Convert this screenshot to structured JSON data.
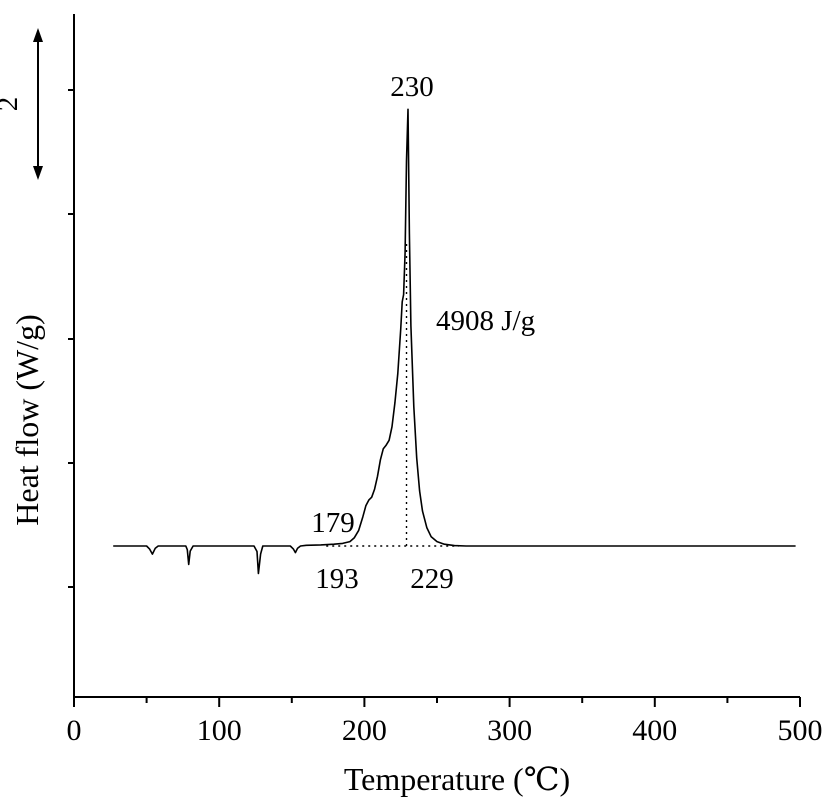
{
  "chart_data": {
    "type": "line",
    "title": "",
    "xlabel": "Temperature (℃)",
    "ylabel": "Heat flow (W/g)",
    "xlim": [
      0,
      500
    ],
    "x_ticks": [
      0,
      100,
      200,
      300,
      400,
      500
    ],
    "x_minor_step": 50,
    "y_ticks_shown": false,
    "grid": false,
    "legend": "none",
    "scale_bar": {
      "label": "2",
      "value": 2,
      "unit": "W/g"
    },
    "baseline_y": 0,
    "series": [
      {
        "points": [
          [
            27,
            0
          ],
          [
            50,
            0
          ],
          [
            52,
            -0.08
          ],
          [
            54,
            -0.22
          ],
          [
            56,
            -0.06
          ],
          [
            58,
            0
          ],
          [
            77,
            0
          ],
          [
            78,
            -0.1
          ],
          [
            79,
            -0.5
          ],
          [
            80,
            -0.14
          ],
          [
            82,
            0
          ],
          [
            124,
            0
          ],
          [
            126,
            -0.15
          ],
          [
            127,
            -0.75
          ],
          [
            128.5,
            -0.22
          ],
          [
            130,
            0
          ],
          [
            149,
            0
          ],
          [
            151,
            -0.08
          ],
          [
            152.5,
            -0.18
          ],
          [
            154,
            -0.06
          ],
          [
            156,
            0
          ],
          [
            160,
            0.02
          ],
          [
            170,
            0.03
          ],
          [
            179,
            0.05
          ],
          [
            185,
            0.07
          ],
          [
            190,
            0.12
          ],
          [
            193,
            0.22
          ],
          [
            196,
            0.42
          ],
          [
            199,
            0.8
          ],
          [
            201,
            1.1
          ],
          [
            203,
            1.25
          ],
          [
            205,
            1.33
          ],
          [
            207,
            1.55
          ],
          [
            209,
            1.9
          ],
          [
            211,
            2.35
          ],
          [
            213,
            2.65
          ],
          [
            215,
            2.75
          ],
          [
            217,
            2.88
          ],
          [
            219,
            3.25
          ],
          [
            221,
            3.9
          ],
          [
            223,
            4.7
          ],
          [
            225,
            5.9
          ],
          [
            226,
            6.65
          ],
          [
            227,
            6.85
          ],
          [
            228,
            8.0
          ],
          [
            229,
            10.5
          ],
          [
            230,
            11.9
          ],
          [
            231,
            8.5
          ],
          [
            232,
            6.0
          ],
          [
            234,
            3.8
          ],
          [
            236,
            2.4
          ],
          [
            238,
            1.5
          ],
          [
            240,
            0.95
          ],
          [
            243,
            0.5
          ],
          [
            246,
            0.25
          ],
          [
            250,
            0.12
          ],
          [
            255,
            0.05
          ],
          [
            262,
            0.01
          ],
          [
            270,
            0
          ],
          [
            300,
            0
          ],
          [
            400,
            0
          ],
          [
            497,
            0
          ]
        ]
      }
    ],
    "integration_baseline": {
      "x": [
        193,
        265
      ],
      "y": 0
    },
    "peak_marker_line": {
      "x": 229
    },
    "annotations": [
      {
        "text": "230",
        "x": 230,
        "at": "above-peak"
      },
      {
        "text": "4908 J/g",
        "x": 256,
        "at": "right-of-peak"
      },
      {
        "text": "179",
        "x": 179,
        "at": "above-baseline"
      },
      {
        "text": "193",
        "x": 193,
        "at": "below-baseline"
      },
      {
        "text": "229",
        "x": 229,
        "at": "below-baseline"
      }
    ]
  }
}
